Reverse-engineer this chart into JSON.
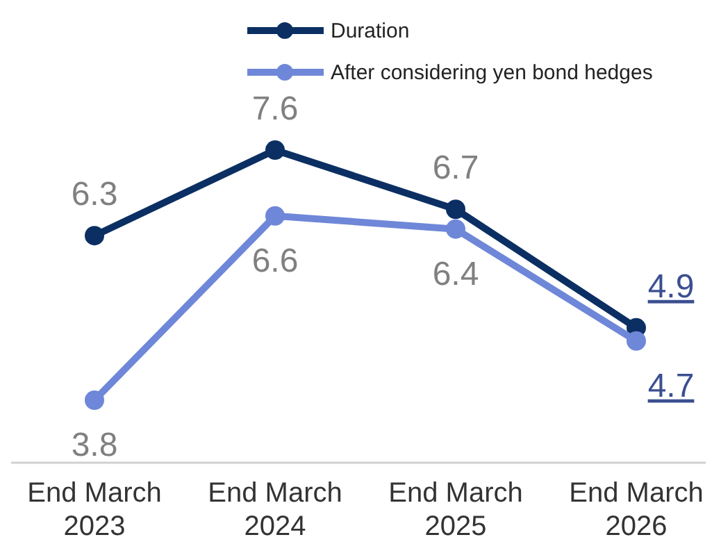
{
  "chart_data": {
    "type": "line",
    "categories": [
      "End March 2023",
      "End March 2024",
      "End March 2025",
      "End March 2026"
    ],
    "series": [
      {
        "name": "Duration",
        "color": "#0b2f63",
        "values": [
          6.3,
          7.6,
          6.7,
          4.9
        ]
      },
      {
        "name": "After considering yen bond hedges",
        "color": "#6f87d8",
        "values": [
          3.8,
          6.6,
          6.4,
          4.7
        ]
      }
    ],
    "data_labels": true,
    "legend": "top",
    "marker": "circle",
    "line_style": "solid"
  }
}
